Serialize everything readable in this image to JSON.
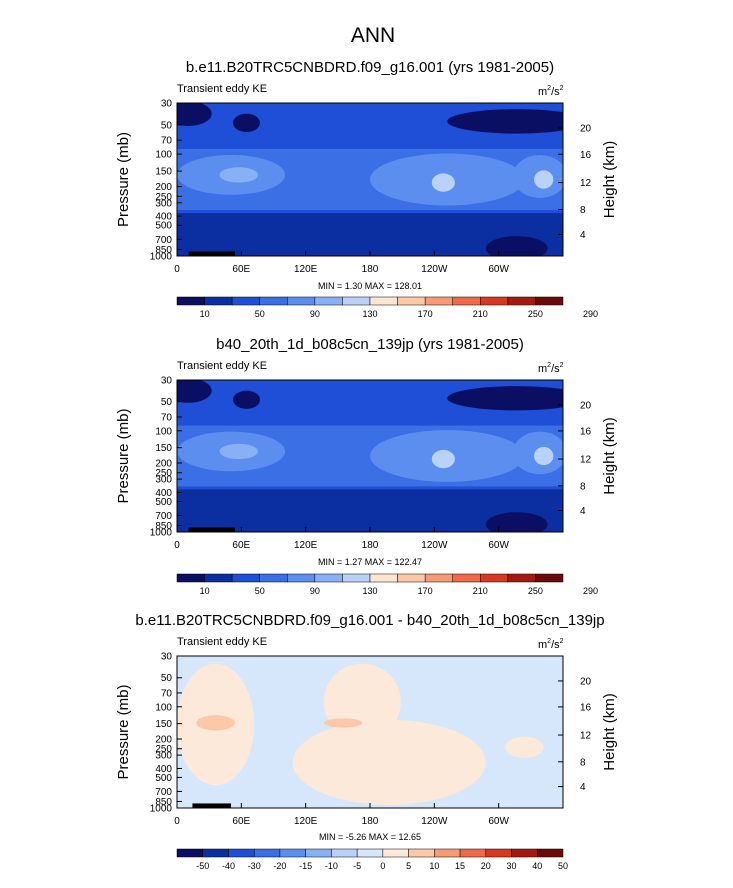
{
  "figure_title": "ANN",
  "units": {
    "base": "m",
    "exp1": "2",
    "mid": "/s",
    "exp2": "2"
  },
  "chart_data": [
    {
      "type": "heatmap",
      "title": "b.e11.B20TRC5CNBDRD.f09_g16.001 (yrs 1981-2005)",
      "subtitle": "Transient eddy KE",
      "ylabel": "Pressure (mb)",
      "ylabel_right": "Height (km)",
      "x_ticks": [
        "0",
        "60E",
        "120E",
        "180",
        "120W",
        "60W"
      ],
      "y_ticks": [
        "30",
        "50",
        "70",
        "100",
        "150",
        "200",
        "250",
        "300",
        "400",
        "500",
        "700",
        "850",
        "1000"
      ],
      "height_ticks": [
        "20",
        "16",
        "12",
        "8",
        "4"
      ],
      "stats": "MIN =   1.30  MAX = 128.01",
      "min": 1.3,
      "max": 128.01,
      "colorbar_labels": [
        "10",
        "50",
        "90",
        "130",
        "170",
        "210",
        "250",
        "290"
      ]
    },
    {
      "type": "heatmap",
      "title": "b40_20th_1d_b08c5cn_139jp (yrs 1981-2005)",
      "subtitle": "Transient eddy KE",
      "ylabel": "Pressure (mb)",
      "ylabel_right": "Height (km)",
      "x_ticks": [
        "0",
        "60E",
        "120E",
        "180",
        "120W",
        "60W"
      ],
      "y_ticks": [
        "30",
        "50",
        "70",
        "100",
        "150",
        "200",
        "250",
        "300",
        "400",
        "500",
        "700",
        "850",
        "1000"
      ],
      "height_ticks": [
        "20",
        "16",
        "12",
        "8",
        "4"
      ],
      "stats": "MIN =   1.27  MAX = 122.47",
      "min": 1.27,
      "max": 122.47,
      "colorbar_labels": [
        "10",
        "50",
        "90",
        "130",
        "170",
        "210",
        "250",
        "290"
      ]
    },
    {
      "type": "heatmap",
      "title": "b.e11.B20TRC5CNBDRD.f09_g16.001 - b40_20th_1d_b08c5cn_139jp",
      "subtitle": "Transient eddy KE",
      "ylabel": "Pressure (mb)",
      "ylabel_right": "Height (km)",
      "x_ticks": [
        "0",
        "60E",
        "120E",
        "180",
        "120W",
        "60W"
      ],
      "y_ticks": [
        "30",
        "50",
        "70",
        "100",
        "150",
        "200",
        "250",
        "300",
        "400",
        "500",
        "700",
        "850",
        "1000"
      ],
      "height_ticks": [
        "20",
        "16",
        "12",
        "8",
        "4"
      ],
      "stats": "MIN =  -5.26  MAX =  12.65",
      "min": -5.26,
      "max": 12.65,
      "colorbar_labels": [
        "-50",
        "-40",
        "-30",
        "-20",
        "-15",
        "-10",
        "-5",
        "0",
        "5",
        "10",
        "15",
        "20",
        "30",
        "40",
        "50"
      ]
    }
  ],
  "colors": {
    "kec": [
      "#0a0f63",
      "#0b2ea0",
      "#1f4fd6",
      "#3a6fe6",
      "#5c8ef0",
      "#88b0f5",
      "#b9d2f8",
      "#fde5d3",
      "#fcc8a8",
      "#f79a76",
      "#f06a4a",
      "#d7381f",
      "#a51a10",
      "#6b0a08"
    ],
    "diff": [
      "#0a0f63",
      "#0b2ea0",
      "#1f4fd6",
      "#3a6fe6",
      "#5c8ef0",
      "#88b0f5",
      "#b9d2f8",
      "#d6e6fb",
      "#fde9d9",
      "#fcc8a8",
      "#f79a76",
      "#f06a4a",
      "#d7381f",
      "#a51a10",
      "#6b0a08"
    ]
  }
}
